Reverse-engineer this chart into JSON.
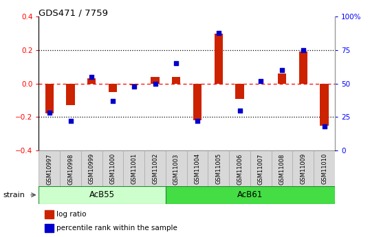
{
  "title": "GDS471 / 7759",
  "samples": [
    "GSM10997",
    "GSM10998",
    "GSM10999",
    "GSM11000",
    "GSM11001",
    "GSM11002",
    "GSM11003",
    "GSM11004",
    "GSM11005",
    "GSM11006",
    "GSM11007",
    "GSM11008",
    "GSM11009",
    "GSM11010"
  ],
  "log_ratio": [
    -0.18,
    -0.13,
    0.03,
    -0.05,
    -0.01,
    0.04,
    0.04,
    -0.22,
    0.3,
    -0.09,
    0.0,
    0.06,
    0.19,
    -0.25
  ],
  "percentile": [
    28,
    22,
    55,
    37,
    48,
    50,
    65,
    22,
    88,
    30,
    52,
    60,
    75,
    18
  ],
  "groups": [
    {
      "name": "AcB55",
      "indices": [
        0,
        1,
        2,
        3,
        4,
        5
      ],
      "color": "#bbffbb"
    },
    {
      "name": "AcB61",
      "indices": [
        6,
        7,
        8,
        9,
        10,
        11,
        12,
        13
      ],
      "color": "#44dd44"
    }
  ],
  "bar_color": "#cc2200",
  "dot_color": "#0000cc",
  "ylim_left": [
    -0.4,
    0.4
  ],
  "ylim_right": [
    0,
    100
  ],
  "yticks_left": [
    -0.4,
    -0.2,
    0.0,
    0.2,
    0.4
  ],
  "yticks_right": [
    0,
    25,
    50,
    75,
    100
  ],
  "ytick_labels_right": [
    "0",
    "25",
    "50",
    "75",
    "100%"
  ],
  "strain_label": "strain",
  "background_color": "#ffffff",
  "bar_width": 0.4,
  "dot_size": 22,
  "acb55_color": "#ccffcc",
  "acb61_color": "#44dd44"
}
